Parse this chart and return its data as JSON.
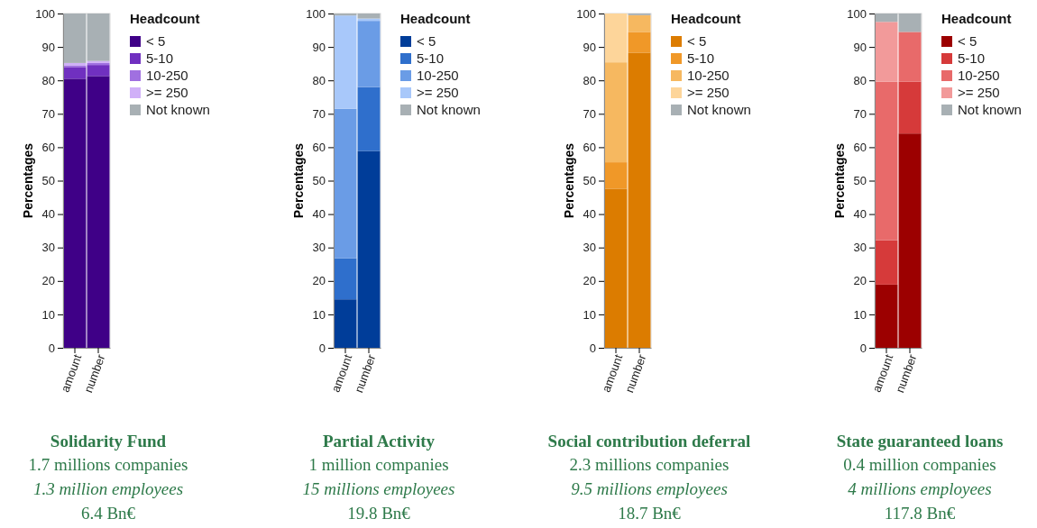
{
  "chart_data": [
    {
      "type": "bar",
      "stacked": true,
      "title": "Solidarity Fund",
      "annotations": [
        "1.7 millions companies",
        "1.3 million employees",
        "6.4 Bn€"
      ],
      "ylabel": "Percentages",
      "legend_title": "Headcount",
      "legend": "right",
      "categories": [
        "amount",
        "number"
      ],
      "ylim": [
        0,
        100
      ],
      "yticks": [
        0,
        10,
        20,
        30,
        40,
        50,
        60,
        70,
        80,
        90,
        100
      ],
      "series": [
        {
          "name": "< 5",
          "color": "#3f0087",
          "values": [
            80.5,
            81.3
          ]
        },
        {
          "name": "5-10",
          "color": "#7030c0",
          "values": [
            3.5,
            3.3
          ]
        },
        {
          "name": "10-250",
          "color": "#a070e0",
          "values": [
            0.5,
            0.6
          ]
        },
        {
          "name": ">= 250",
          "color": "#d0b0f8",
          "values": [
            0.7,
            0.6
          ]
        },
        {
          "name": "Not known",
          "color": "#a8b0b4",
          "values": [
            14.8,
            14.2
          ]
        }
      ]
    },
    {
      "type": "bar",
      "stacked": true,
      "title": "Partial Activity",
      "annotations": [
        "1 million companies",
        "15 millions employees",
        "19.8 Bn€"
      ],
      "ylabel": "Percentages",
      "legend_title": "Headcount",
      "legend": "right",
      "categories": [
        "amount",
        "number"
      ],
      "ylim": [
        0,
        100
      ],
      "yticks": [
        0,
        10,
        20,
        30,
        40,
        50,
        60,
        70,
        80,
        90,
        100
      ],
      "series": [
        {
          "name": "< 5",
          "color": "#003d99",
          "values": [
            14.5,
            58.9
          ]
        },
        {
          "name": "5-10",
          "color": "#2f6fcc",
          "values": [
            12.3,
            19.1
          ]
        },
        {
          "name": "10-250",
          "color": "#6a9ce6",
          "values": [
            44.7,
            19.8
          ]
        },
        {
          "name": ">= 250",
          "color": "#a8c8fa",
          "values": [
            27.9,
            0.7
          ]
        },
        {
          "name": "Not known",
          "color": "#a8b0b4",
          "values": [
            0.6,
            1.5
          ]
        }
      ]
    },
    {
      "type": "bar",
      "stacked": true,
      "title": "Social contribution deferral",
      "annotations": [
        "2.3 millions companies",
        "9.5 millions employees",
        "18.7 Bn€"
      ],
      "ylabel": "Percentages",
      "legend_title": "Headcount",
      "legend": "right",
      "categories": [
        "amount",
        "number"
      ],
      "ylim": [
        0,
        100
      ],
      "yticks": [
        0,
        10,
        20,
        30,
        40,
        50,
        60,
        70,
        80,
        90,
        100
      ],
      "series": [
        {
          "name": "< 5",
          "color": "#dc7c00",
          "values": [
            47.6,
            88.3
          ]
        },
        {
          "name": "5-10",
          "color": "#f09828",
          "values": [
            7.9,
            6.2
          ]
        },
        {
          "name": "10-250",
          "color": "#f6b860",
          "values": [
            29.9,
            5.0
          ]
        },
        {
          "name": ">= 250",
          "color": "#fdd59a",
          "values": [
            14.6,
            0
          ]
        },
        {
          "name": "Not known",
          "color": "#a8b0b4",
          "values": [
            0,
            0.5
          ]
        }
      ]
    },
    {
      "type": "bar",
      "stacked": true,
      "title": "State guaranteed loans",
      "annotations": [
        "0.4 million companies",
        "4 millions employees",
        "117.8 Bn€"
      ],
      "ylabel": "Percentages",
      "legend_title": "Headcount",
      "legend": "right",
      "categories": [
        "amount",
        "number"
      ],
      "ylim": [
        0,
        100
      ],
      "yticks": [
        0,
        10,
        20,
        30,
        40,
        50,
        60,
        70,
        80,
        90,
        100
      ],
      "series": [
        {
          "name": "< 5",
          "color": "#9c0000",
          "values": [
            18.9,
            64.1
          ]
        },
        {
          "name": "5-10",
          "color": "#d63a3a",
          "values": [
            13.3,
            15.5
          ]
        },
        {
          "name": "10-250",
          "color": "#e86a6a",
          "values": [
            47.4,
            14.9
          ]
        },
        {
          "name": ">= 250",
          "color": "#f29a9a",
          "values": [
            17.9,
            0
          ]
        },
        {
          "name": "Not known",
          "color": "#a8b0b4",
          "values": [
            2.5,
            5.5
          ]
        }
      ]
    }
  ]
}
